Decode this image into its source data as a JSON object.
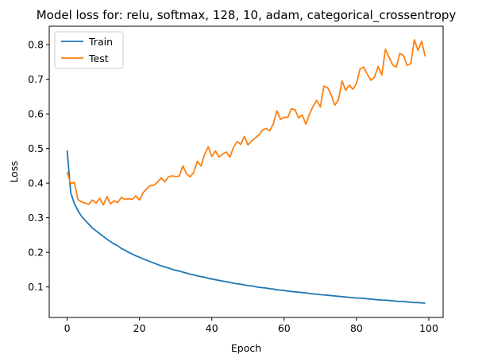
{
  "chart_data": {
    "type": "line",
    "title": "Model loss for: relu, softmax, 128, 10, adam, categorical_crossentropy",
    "xlabel": "Epoch",
    "ylabel": "Loss",
    "xlim": [
      -4.95,
      103.95
    ],
    "ylim": [
      0.012,
      0.853
    ],
    "xticks": [
      0,
      20,
      40,
      60,
      80,
      100
    ],
    "yticks": [
      0.1,
      0.2,
      0.3,
      0.4,
      0.5,
      0.6,
      0.7,
      0.8
    ],
    "grid": false,
    "legend_position": "upper left",
    "series": [
      {
        "name": "Train",
        "color": "#1f77b4",
        "values": [
          0.494,
          0.372,
          0.341,
          0.32,
          0.304,
          0.292,
          0.281,
          0.27,
          0.262,
          0.254,
          0.246,
          0.238,
          0.231,
          0.224,
          0.219,
          0.211,
          0.206,
          0.2,
          0.195,
          0.19,
          0.186,
          0.181,
          0.177,
          0.173,
          0.169,
          0.165,
          0.161,
          0.158,
          0.155,
          0.151,
          0.148,
          0.146,
          0.143,
          0.14,
          0.137,
          0.135,
          0.132,
          0.13,
          0.128,
          0.125,
          0.123,
          0.121,
          0.119,
          0.117,
          0.115,
          0.113,
          0.111,
          0.109,
          0.108,
          0.106,
          0.104,
          0.103,
          0.101,
          0.099,
          0.098,
          0.097,
          0.095,
          0.094,
          0.092,
          0.091,
          0.09,
          0.088,
          0.087,
          0.086,
          0.085,
          0.084,
          0.083,
          0.081,
          0.08,
          0.079,
          0.078,
          0.077,
          0.076,
          0.075,
          0.074,
          0.073,
          0.072,
          0.071,
          0.07,
          0.069,
          0.068,
          0.068,
          0.067,
          0.066,
          0.065,
          0.064,
          0.063,
          0.062,
          0.062,
          0.061,
          0.06,
          0.059,
          0.058,
          0.058,
          0.057,
          0.056,
          0.055,
          0.055,
          0.054,
          0.053
        ]
      },
      {
        "name": "Test",
        "color": "#ff7f0e",
        "values": [
          0.432,
          0.398,
          0.402,
          0.352,
          0.346,
          0.342,
          0.339,
          0.351,
          0.342,
          0.356,
          0.337,
          0.361,
          0.34,
          0.349,
          0.344,
          0.359,
          0.353,
          0.355,
          0.353,
          0.363,
          0.351,
          0.372,
          0.384,
          0.393,
          0.394,
          0.403,
          0.415,
          0.404,
          0.418,
          0.421,
          0.419,
          0.42,
          0.45,
          0.427,
          0.418,
          0.431,
          0.463,
          0.449,
          0.483,
          0.505,
          0.477,
          0.493,
          0.475,
          0.484,
          0.49,
          0.475,
          0.503,
          0.52,
          0.512,
          0.535,
          0.51,
          0.522,
          0.53,
          0.539,
          0.553,
          0.558,
          0.551,
          0.571,
          0.609,
          0.584,
          0.59,
          0.59,
          0.615,
          0.612,
          0.588,
          0.597,
          0.57,
          0.599,
          0.622,
          0.639,
          0.62,
          0.68,
          0.676,
          0.655,
          0.625,
          0.64,
          0.695,
          0.668,
          0.683,
          0.671,
          0.688,
          0.73,
          0.735,
          0.714,
          0.697,
          0.706,
          0.737,
          0.712,
          0.787,
          0.764,
          0.741,
          0.735,
          0.775,
          0.768,
          0.74,
          0.745,
          0.814,
          0.783,
          0.81,
          0.766
        ]
      }
    ]
  }
}
